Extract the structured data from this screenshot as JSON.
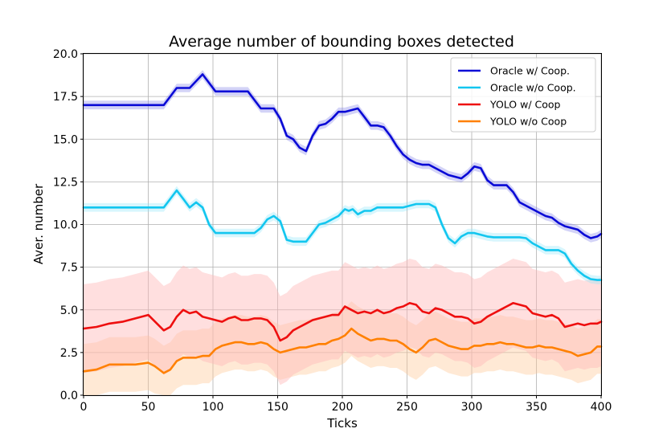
{
  "chart_data": {
    "type": "line",
    "title": "Average number of bounding boxes detected",
    "xlabel": "Ticks",
    "ylabel": "Aver. number",
    "xlim": [
      0,
      400
    ],
    "ylim": [
      0,
      20
    ],
    "xticks": [
      0,
      50,
      100,
      150,
      200,
      250,
      300,
      350,
      400
    ],
    "yticks": [
      0.0,
      2.5,
      5.0,
      7.5,
      10.0,
      12.5,
      15.0,
      17.5,
      20.0
    ],
    "xtick_labels": [
      "0",
      "50",
      "100",
      "150",
      "200",
      "250",
      "300",
      "350",
      "400"
    ],
    "ytick_labels": [
      "0.0",
      "2.5",
      "5.0",
      "7.5",
      "10.0",
      "12.5",
      "15.0",
      "17.5",
      "20.0"
    ],
    "grid": true,
    "legend_position": "top-right",
    "series": [
      {
        "name": "Oracle w/ Coop.",
        "color": "#0a0ad6",
        "band_color": "#8080e8",
        "band_opacity": 0.35,
        "x": [
          0,
          10,
          20,
          30,
          40,
          50,
          62,
          67,
          72,
          82,
          92,
          95,
          102,
          112,
          122,
          127,
          132,
          137,
          142,
          147,
          152,
          157,
          162,
          167,
          172,
          177,
          182,
          187,
          192,
          197,
          202,
          207,
          212,
          217,
          222,
          227,
          232,
          237,
          242,
          247,
          252,
          257,
          262,
          267,
          272,
          277,
          282,
          287,
          292,
          297,
          302,
          307,
          312,
          317,
          322,
          327,
          332,
          337,
          342,
          347,
          352,
          357,
          362,
          367,
          372,
          377,
          382,
          387,
          392,
          397,
          400
        ],
        "y": [
          17.0,
          17.0,
          17.0,
          17.0,
          17.0,
          17.0,
          17.0,
          17.5,
          18.0,
          18.0,
          18.8,
          18.5,
          17.8,
          17.8,
          17.8,
          17.8,
          17.3,
          16.8,
          16.8,
          16.8,
          16.2,
          15.2,
          15.0,
          14.5,
          14.3,
          15.2,
          15.8,
          15.9,
          16.2,
          16.6,
          16.6,
          16.7,
          16.8,
          16.3,
          15.8,
          15.8,
          15.7,
          15.2,
          14.6,
          14.1,
          13.8,
          13.6,
          13.5,
          13.5,
          13.3,
          13.1,
          12.9,
          12.8,
          12.7,
          13.0,
          13.4,
          13.3,
          12.6,
          12.3,
          12.3,
          12.3,
          11.9,
          11.3,
          11.1,
          10.9,
          10.7,
          10.5,
          10.4,
          10.1,
          9.9,
          9.8,
          9.7,
          9.4,
          9.2,
          9.3,
          9.45
        ],
        "band": 0.25
      },
      {
        "name": "Oracle w/o Coop.",
        "color": "#12c6ef",
        "band_color": "#8fe6f8",
        "band_opacity": 0.35,
        "x": [
          0,
          10,
          20,
          30,
          40,
          50,
          62,
          67,
          72,
          77,
          82,
          87,
          92,
          97,
          102,
          107,
          112,
          117,
          122,
          127,
          132,
          137,
          142,
          147,
          152,
          157,
          162,
          167,
          172,
          177,
          182,
          187,
          192,
          197,
          202,
          205,
          208,
          212,
          217,
          222,
          227,
          232,
          237,
          242,
          247,
          252,
          257,
          262,
          267,
          272,
          277,
          282,
          287,
          292,
          297,
          302,
          307,
          312,
          317,
          322,
          327,
          332,
          337,
          342,
          347,
          352,
          357,
          362,
          367,
          372,
          377,
          382,
          387,
          392,
          397,
          400
        ],
        "y": [
          11.0,
          11.0,
          11.0,
          11.0,
          11.0,
          11.0,
          11.0,
          11.5,
          12.0,
          11.5,
          11.0,
          11.3,
          11.0,
          10.0,
          9.5,
          9.5,
          9.5,
          9.5,
          9.5,
          9.5,
          9.5,
          9.8,
          10.3,
          10.5,
          10.2,
          9.1,
          9.0,
          9.0,
          9.0,
          9.5,
          10.0,
          10.1,
          10.3,
          10.5,
          10.9,
          10.8,
          10.9,
          10.6,
          10.8,
          10.8,
          11.0,
          11.0,
          11.0,
          11.0,
          11.0,
          11.1,
          11.2,
          11.2,
          11.2,
          11.0,
          10.0,
          9.2,
          8.9,
          9.3,
          9.5,
          9.5,
          9.4,
          9.3,
          9.25,
          9.25,
          9.25,
          9.25,
          9.25,
          9.2,
          8.9,
          8.7,
          8.5,
          8.5,
          8.5,
          8.3,
          7.7,
          7.3,
          7.0,
          6.8,
          6.75,
          6.75
        ],
        "band": 0.25
      },
      {
        "name": "YOLO w/ Coop",
        "color": "#ee0f0f",
        "band_color": "#ffb7b7",
        "band_opacity": 0.45,
        "x": [
          0,
          10,
          20,
          30,
          40,
          50,
          62,
          67,
          72,
          77,
          82,
          87,
          92,
          97,
          102,
          107,
          112,
          117,
          122,
          127,
          132,
          137,
          142,
          147,
          152,
          157,
          162,
          167,
          172,
          177,
          182,
          187,
          192,
          197,
          202,
          207,
          212,
          217,
          222,
          227,
          232,
          237,
          242,
          247,
          252,
          257,
          262,
          267,
          272,
          277,
          282,
          287,
          292,
          297,
          302,
          307,
          312,
          317,
          322,
          327,
          332,
          337,
          342,
          347,
          352,
          357,
          362,
          367,
          372,
          377,
          382,
          387,
          392,
          397,
          400
        ],
        "y": [
          3.9,
          4.0,
          4.2,
          4.3,
          4.5,
          4.7,
          3.8,
          4.0,
          4.6,
          5.0,
          4.8,
          4.9,
          4.6,
          4.5,
          4.4,
          4.3,
          4.5,
          4.6,
          4.4,
          4.4,
          4.5,
          4.5,
          4.4,
          4.0,
          3.2,
          3.4,
          3.8,
          4.0,
          4.2,
          4.4,
          4.5,
          4.6,
          4.7,
          4.7,
          5.2,
          5.0,
          4.8,
          4.9,
          4.8,
          5.0,
          4.8,
          4.9,
          5.1,
          5.2,
          5.4,
          5.3,
          4.9,
          4.8,
          5.1,
          5.0,
          4.8,
          4.6,
          4.6,
          4.5,
          4.2,
          4.3,
          4.6,
          4.8,
          5.0,
          5.2,
          5.4,
          5.3,
          5.2,
          4.8,
          4.7,
          4.6,
          4.7,
          4.5,
          4.0,
          4.1,
          4.2,
          4.1,
          4.2,
          4.2,
          4.3
        ],
        "band": 2.6
      },
      {
        "name": "YOLO w/o Coop",
        "color": "#ff8000",
        "band_color": "#ffc896",
        "band_opacity": 0.4,
        "x": [
          0,
          10,
          20,
          30,
          40,
          50,
          55,
          62,
          67,
          72,
          77,
          82,
          87,
          92,
          97,
          102,
          107,
          112,
          117,
          122,
          127,
          132,
          137,
          142,
          147,
          152,
          157,
          162,
          167,
          172,
          177,
          182,
          187,
          192,
          197,
          202,
          207,
          212,
          217,
          222,
          227,
          232,
          237,
          242,
          247,
          252,
          257,
          262,
          267,
          272,
          277,
          282,
          287,
          292,
          297,
          302,
          307,
          312,
          317,
          322,
          327,
          332,
          337,
          342,
          347,
          352,
          357,
          362,
          367,
          372,
          377,
          382,
          387,
          392,
          397,
          400
        ],
        "y": [
          1.4,
          1.5,
          1.8,
          1.8,
          1.8,
          1.9,
          1.7,
          1.3,
          1.5,
          2.0,
          2.2,
          2.2,
          2.2,
          2.3,
          2.3,
          2.7,
          2.9,
          3.0,
          3.1,
          3.1,
          3.0,
          3.0,
          3.1,
          3.0,
          2.7,
          2.5,
          2.6,
          2.7,
          2.8,
          2.8,
          2.9,
          3.0,
          3.0,
          3.2,
          3.3,
          3.5,
          3.9,
          3.6,
          3.4,
          3.2,
          3.3,
          3.3,
          3.2,
          3.2,
          3.0,
          2.7,
          2.5,
          2.8,
          3.2,
          3.3,
          3.1,
          2.9,
          2.8,
          2.7,
          2.7,
          2.9,
          2.9,
          3.0,
          3.0,
          3.1,
          3.0,
          3.0,
          2.9,
          2.8,
          2.8,
          2.9,
          2.8,
          2.8,
          2.7,
          2.6,
          2.5,
          2.3,
          2.4,
          2.5,
          2.85,
          2.85
        ],
        "band": 1.6
      }
    ]
  }
}
